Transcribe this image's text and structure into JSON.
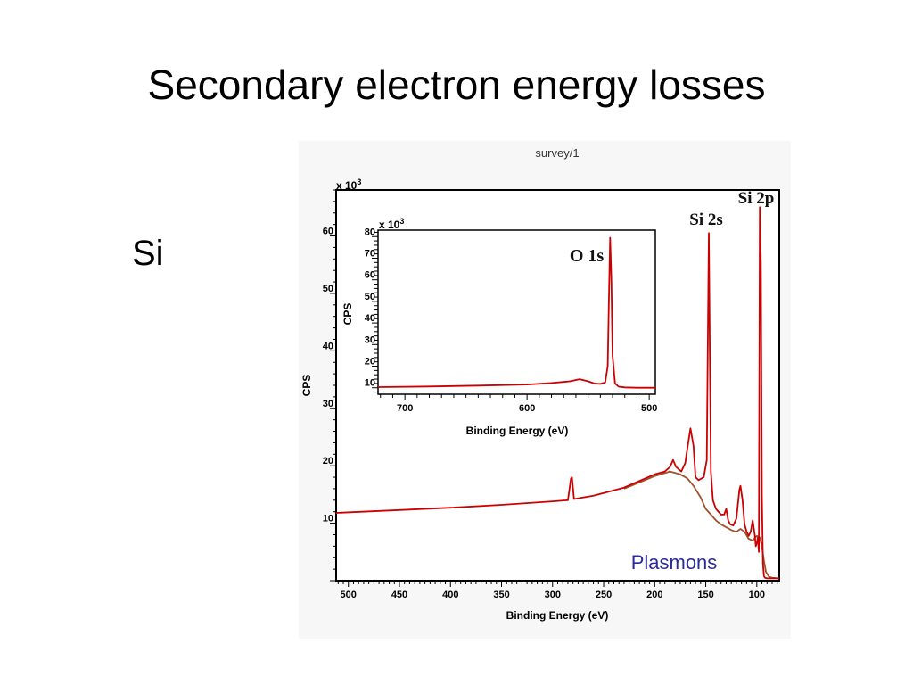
{
  "slide": {
    "title": "Secondary electron energy losses",
    "side_label": "Si"
  },
  "colors": {
    "spectrum_red": "#cc0000",
    "background_brown": "#a0522d",
    "annotation_blue": "#2b2b9a",
    "panel_bg": "#f7f7f7"
  },
  "chart_data": [
    {
      "type": "line",
      "title": "survey/1",
      "xlabel": "Binding Energy (eV)",
      "ylabel": "CPS",
      "y_multiplier": "x 10",
      "y_multiplier_exp": "3",
      "x_reversed": true,
      "xlim": [
        512,
        78
      ],
      "ylim": [
        0,
        68
      ],
      "x_ticks": [
        500,
        450,
        400,
        350,
        300,
        250,
        200,
        150,
        100
      ],
      "y_ticks": [
        10,
        20,
        30,
        40,
        50,
        60
      ],
      "grid": false,
      "series": [
        {
          "name": "",
          "color": "#cc0000",
          "x": [
            512,
            450,
            400,
            350,
            300,
            285,
            282,
            281,
            279,
            260,
            230,
            200,
            190,
            185,
            182,
            179,
            174,
            170,
            168,
            165,
            162,
            160,
            157,
            152,
            149,
            147,
            145,
            143,
            140,
            135,
            132,
            130,
            128,
            126,
            123,
            120,
            117,
            116,
            114,
            112,
            110,
            108,
            106,
            104,
            102,
            101,
            100,
            99,
            98,
            97,
            96,
            95,
            94,
            93,
            92,
            90,
            85,
            78
          ],
          "y": [
            11.8,
            12.3,
            12.7,
            13.2,
            13.8,
            14.0,
            17.8,
            18.0,
            14.2,
            14.8,
            16.2,
            18.5,
            19.0,
            19.8,
            21.0,
            19.8,
            19.0,
            20.5,
            23.0,
            26.5,
            23.5,
            18.0,
            17.5,
            18.0,
            21.0,
            60.5,
            19.0,
            14.0,
            12.5,
            11.5,
            11.5,
            12.5,
            10.5,
            9.8,
            9.6,
            10.8,
            15.8,
            16.5,
            14.0,
            9.8,
            8.5,
            7.8,
            8.5,
            10.5,
            8.0,
            6.0,
            6.5,
            7.5,
            5.0,
            65.0,
            55.0,
            15.0,
            3.0,
            0.8,
            0.5,
            0.4,
            0.4,
            0.4
          ]
        },
        {
          "name": "",
          "color": "#a0522d",
          "x": [
            230,
            200,
            185,
            175,
            168,
            162,
            155,
            150,
            145,
            140,
            135,
            130,
            125,
            120,
            116,
            112,
            108,
            104,
            100,
            97,
            95,
            93,
            91,
            88,
            85,
            78
          ],
          "y": [
            16.0,
            18.2,
            19.0,
            18.5,
            17.8,
            16.5,
            14.5,
            12.5,
            11.5,
            10.5,
            9.8,
            9.3,
            8.8,
            8.5,
            9.0,
            8.5,
            7.3,
            7.0,
            7.8,
            7.5,
            6.0,
            3.5,
            1.5,
            0.7,
            0.5,
            0.4
          ]
        }
      ],
      "annotations": [
        {
          "text": "Si 2p",
          "x": 97,
          "y": 65.0
        },
        {
          "text": "Si 2s",
          "x": 147,
          "y": 60.5
        },
        {
          "text": "Plasmons",
          "x": 160,
          "y": 3.5
        }
      ]
    },
    {
      "type": "line",
      "title": "",
      "xlabel": "Binding Energy (eV)",
      "ylabel": "CPS",
      "y_multiplier": "x 10",
      "y_multiplier_exp": "3",
      "x_reversed": true,
      "xlim": [
        722,
        495
      ],
      "ylim": [
        7,
        83
      ],
      "x_ticks": [
        700,
        600,
        500
      ],
      "y_ticks": [
        10,
        20,
        30,
        40,
        50,
        60,
        70,
        80
      ],
      "grid": false,
      "series": [
        {
          "name": "",
          "color": "#cc0000",
          "x": [
            722,
            680,
            640,
            600,
            580,
            565,
            557,
            550,
            545,
            540,
            536,
            534,
            533,
            532,
            531,
            530,
            528,
            525,
            520,
            510,
            495
          ],
          "y": [
            10.3,
            10.6,
            11.0,
            11.5,
            12.2,
            13.0,
            14.0,
            13.0,
            12.0,
            11.8,
            12.5,
            20.0,
            50.0,
            79.5,
            60.0,
            25.0,
            12.0,
            10.5,
            10.2,
            10.0,
            10.0
          ]
        }
      ],
      "annotations": [
        {
          "text": "O 1s",
          "x": 532,
          "y": 79.5
        }
      ]
    }
  ]
}
